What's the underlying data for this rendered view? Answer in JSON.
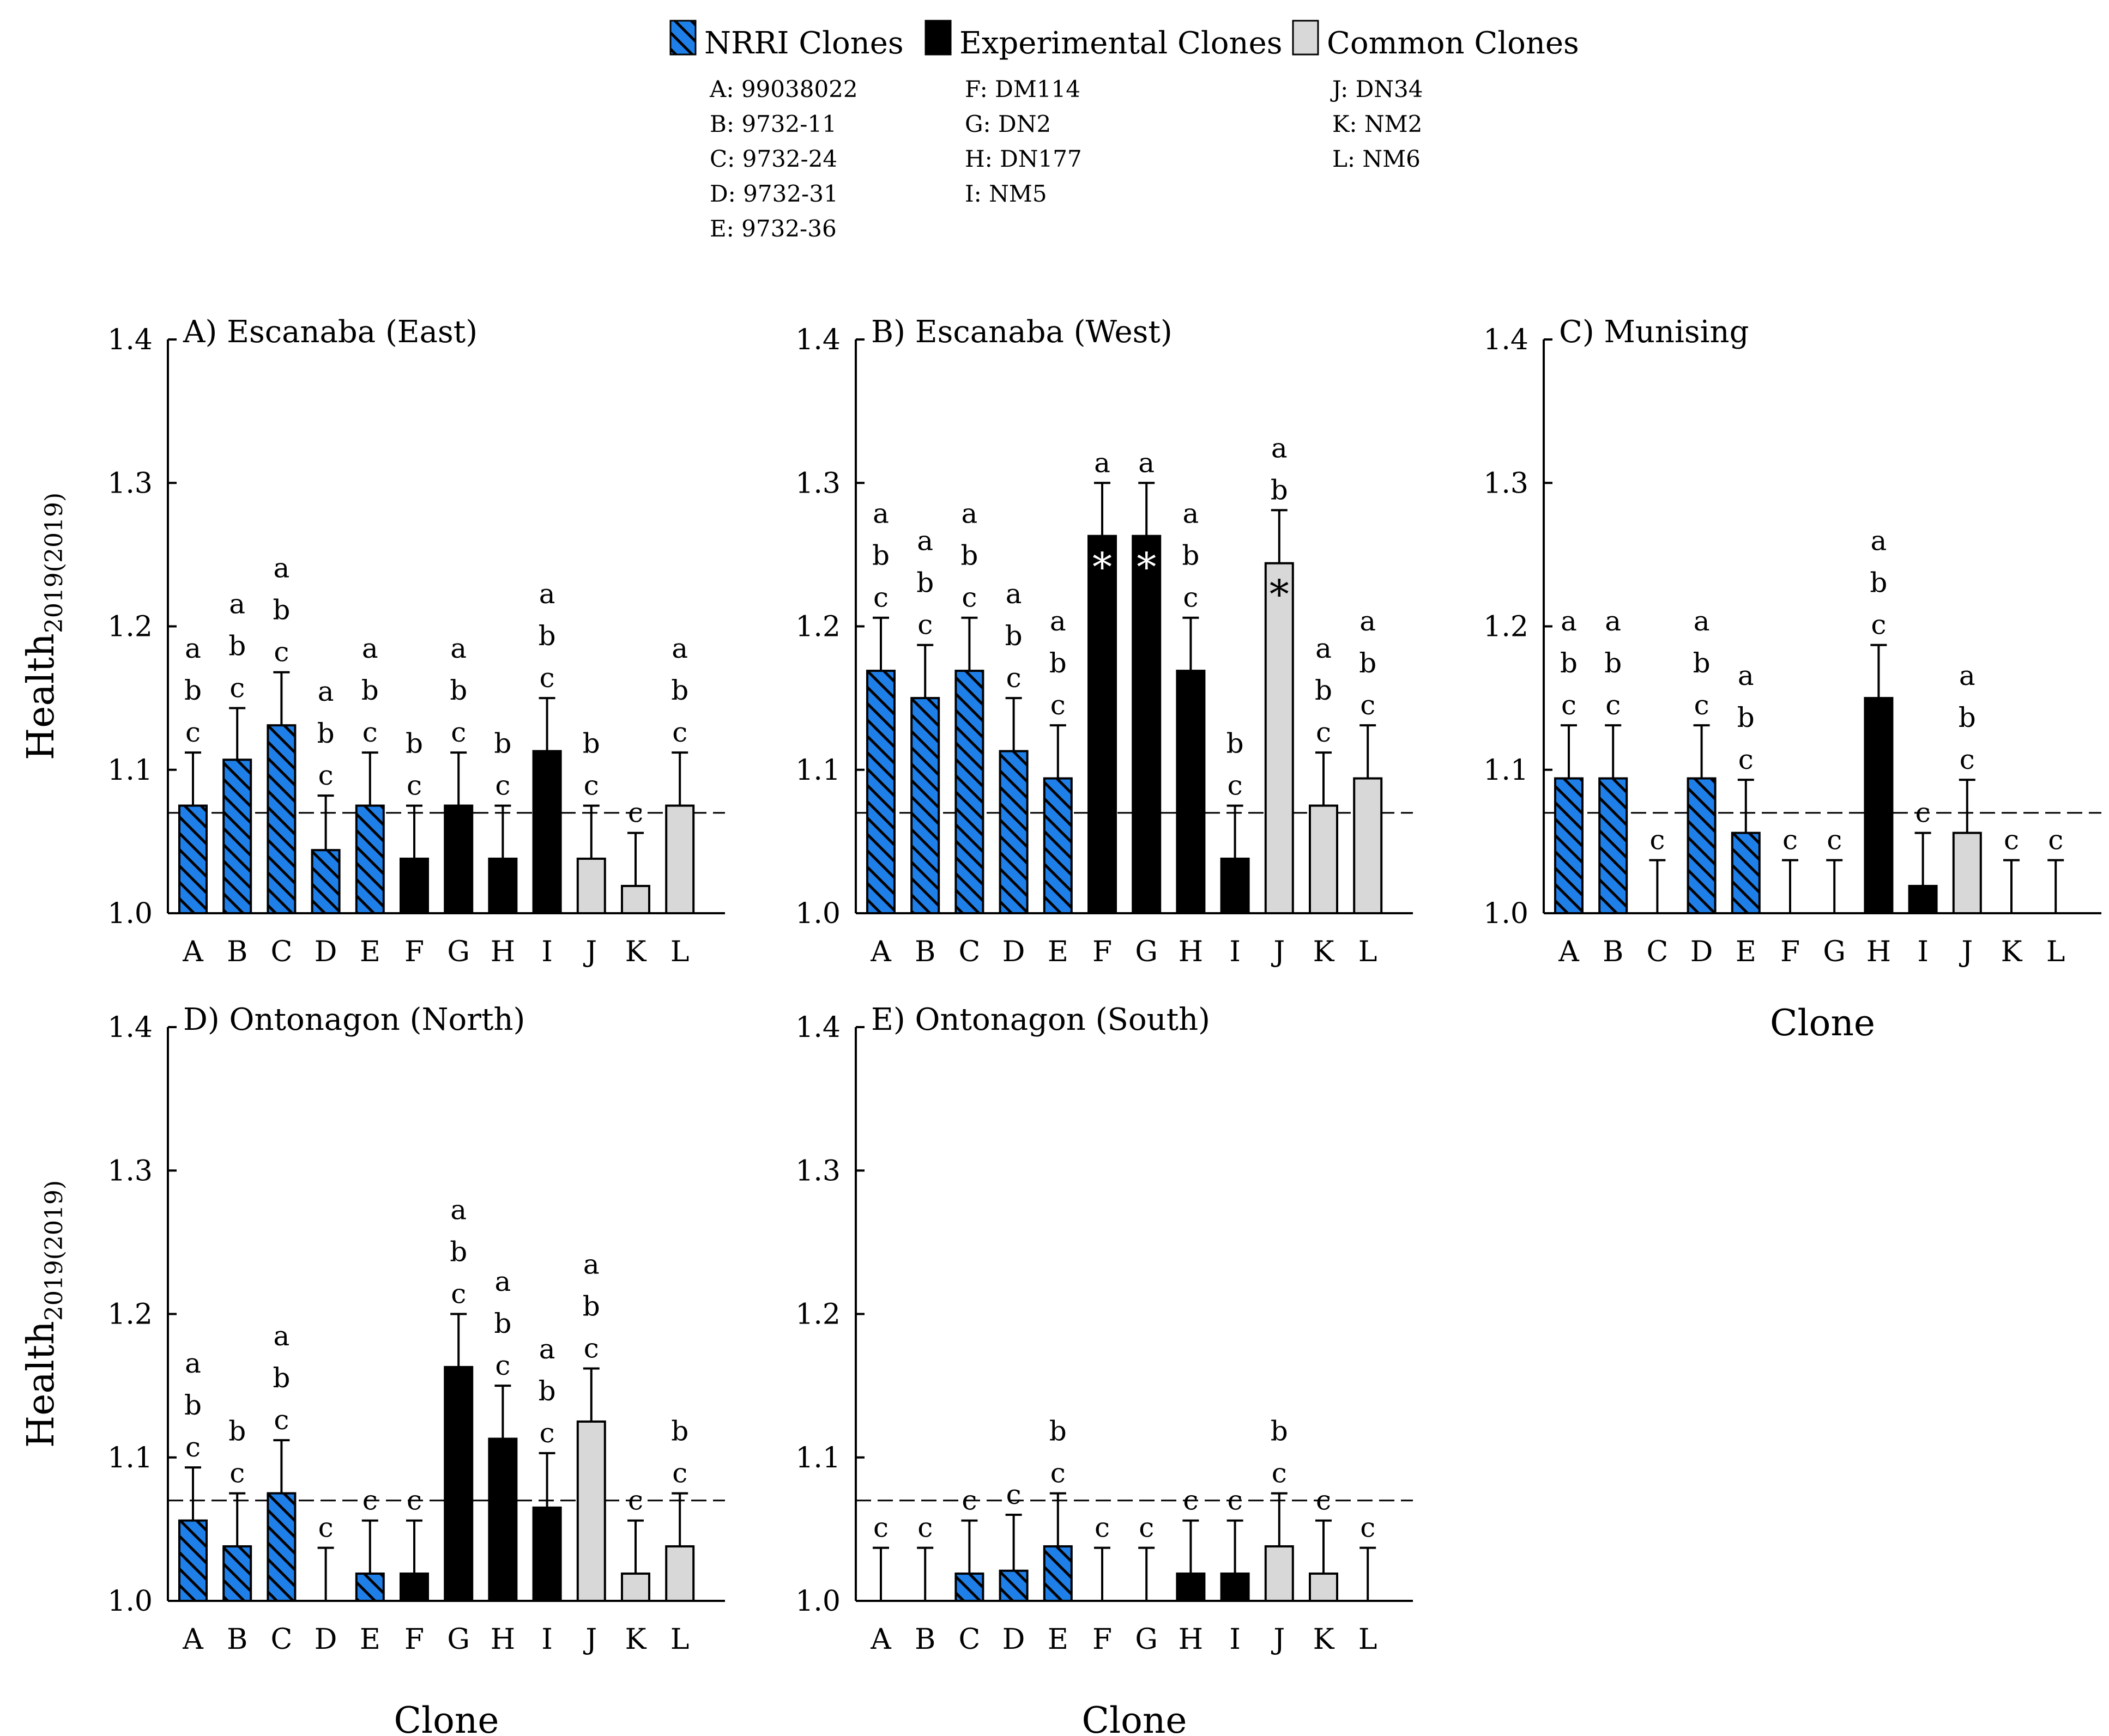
{
  "legend": {
    "groups": [
      {
        "label": "NRRI Clones",
        "fill": "#1f7fe8",
        "hatch": true,
        "members": [
          "A: 99038022",
          "B: 9732-11",
          "C: 9732-24",
          "D: 9732-31",
          "E: 9732-36"
        ]
      },
      {
        "label": "Experimental Clones",
        "fill": "#000000",
        "hatch": false,
        "members": [
          "F: DM114",
          "G: DN2",
          "H: DN177",
          "I: NM5"
        ]
      },
      {
        "label": "Common Clones",
        "fill": "#d8d8d8",
        "hatch": false,
        "members": [
          "J: DN34",
          "K: NM2",
          "L: NM6"
        ]
      }
    ]
  },
  "colors": {
    "nrri": "#1f7fe8",
    "experimental": "#000000",
    "common": "#d8d8d8"
  },
  "chart_data": [
    {
      "type": "bar",
      "title": "A) Escanaba (East)",
      "xlabel": "",
      "ylabel_main": "Health",
      "ylabel_sub": "2019(2019)",
      "ylim": [
        1.0,
        1.4
      ],
      "yticks": [
        "1.0",
        "1.1",
        "1.2",
        "1.3",
        "1.4"
      ],
      "reference_line": 1.07,
      "categories": [
        "A",
        "B",
        "C",
        "D",
        "E",
        "F",
        "G",
        "H",
        "I",
        "J",
        "K",
        "L"
      ],
      "values": [
        1.075,
        1.107,
        1.131,
        1.044,
        1.075,
        1.038,
        1.075,
        1.038,
        1.113,
        1.038,
        1.019,
        1.075
      ],
      "errors": [
        0.037,
        0.036,
        0.037,
        0.038,
        0.037,
        0.037,
        0.037,
        0.037,
        0.037,
        0.037,
        0.037,
        0.037
      ],
      "letters": [
        "abc",
        "abc",
        "abc",
        "abc",
        "abc",
        "bc",
        "abc",
        "bc",
        "abc",
        "bc",
        "c",
        "abc"
      ],
      "stars": [
        "",
        "",
        "",
        "",
        "",
        "",
        "",
        "",
        "",
        "",
        "",
        ""
      ]
    },
    {
      "type": "bar",
      "title": "B) Escanaba (West)",
      "xlabel": "",
      "ylabel_main": "",
      "ylabel_sub": "",
      "ylim": [
        1.0,
        1.4
      ],
      "yticks": [
        "1.0",
        "1.1",
        "1.2",
        "1.3",
        "1.4"
      ],
      "reference_line": 1.07,
      "categories": [
        "A",
        "B",
        "C",
        "D",
        "E",
        "F",
        "G",
        "H",
        "I",
        "J",
        "K",
        "L"
      ],
      "values": [
        1.169,
        1.15,
        1.169,
        1.113,
        1.094,
        1.263,
        1.263,
        1.169,
        1.038,
        1.244,
        1.075,
        1.094
      ],
      "errors": [
        0.037,
        0.037,
        0.037,
        0.037,
        0.037,
        0.037,
        0.037,
        0.037,
        0.037,
        0.037,
        0.037,
        0.037
      ],
      "letters": [
        "abc",
        "abc",
        "abc",
        "abc",
        "abc",
        "a",
        "a",
        "abc",
        "bc",
        "ab",
        "abc",
        "abc"
      ],
      "stars": [
        "",
        "",
        "",
        "",
        "",
        "*",
        "*",
        "",
        "",
        "*",
        "",
        ""
      ]
    },
    {
      "type": "bar",
      "title": "C) Munising",
      "xlabel": "Clone",
      "ylabel_main": "",
      "ylabel_sub": "",
      "ylim": [
        1.0,
        1.4
      ],
      "yticks": [
        "1.0",
        "1.1",
        "1.2",
        "1.3",
        "1.4"
      ],
      "reference_line": 1.07,
      "categories": [
        "A",
        "B",
        "C",
        "D",
        "E",
        "F",
        "G",
        "H",
        "I",
        "J",
        "K",
        "L"
      ],
      "values": [
        1.094,
        1.094,
        1.0,
        1.094,
        1.056,
        1.0,
        1.0,
        1.15,
        1.019,
        1.056,
        1.0,
        1.0
      ],
      "errors": [
        0.037,
        0.037,
        0.037,
        0.037,
        0.037,
        0.037,
        0.037,
        0.037,
        0.037,
        0.037,
        0.037,
        0.037
      ],
      "letters": [
        "abc",
        "abc",
        "c",
        "abc",
        "abc",
        "c",
        "c",
        "abc",
        "c",
        "abc",
        "c",
        "c"
      ],
      "stars": [
        "",
        "",
        "",
        "",
        "",
        "",
        "",
        "",
        "",
        "",
        "",
        ""
      ]
    },
    {
      "type": "bar",
      "title": "D) Ontonagon (North)",
      "xlabel": "Clone",
      "ylabel_main": "Health",
      "ylabel_sub": "2019(2019)",
      "ylim": [
        1.0,
        1.4
      ],
      "yticks": [
        "1.0",
        "1.1",
        "1.2",
        "1.3",
        "1.4"
      ],
      "reference_line": 1.07,
      "categories": [
        "A",
        "B",
        "C",
        "D",
        "E",
        "F",
        "G",
        "H",
        "I",
        "J",
        "K",
        "L"
      ],
      "values": [
        1.056,
        1.038,
        1.075,
        1.0,
        1.019,
        1.019,
        1.163,
        1.113,
        1.065,
        1.125,
        1.019,
        1.038
      ],
      "errors": [
        0.037,
        0.037,
        0.037,
        0.037,
        0.037,
        0.037,
        0.037,
        0.037,
        0.038,
        0.037,
        0.037,
        0.037
      ],
      "letters": [
        "abc",
        "bc",
        "abc",
        "c",
        "c",
        "c",
        "abc",
        "abc",
        "abc",
        "abc",
        "c",
        "bc"
      ],
      "stars": [
        "",
        "",
        "",
        "",
        "",
        "",
        "",
        "",
        "",
        "",
        "",
        ""
      ]
    },
    {
      "type": "bar",
      "title": "E) Ontonagon (South)",
      "xlabel": "Clone",
      "ylabel_main": "",
      "ylabel_sub": "",
      "ylim": [
        1.0,
        1.4
      ],
      "yticks": [
        "1.0",
        "1.1",
        "1.2",
        "1.3",
        "1.4"
      ],
      "reference_line": 1.07,
      "categories": [
        "A",
        "B",
        "C",
        "D",
        "E",
        "F",
        "G",
        "H",
        "I",
        "J",
        "K",
        "L"
      ],
      "values": [
        1.0,
        1.0,
        1.019,
        1.021,
        1.038,
        1.0,
        1.0,
        1.019,
        1.019,
        1.038,
        1.019,
        1.0
      ],
      "errors": [
        0.037,
        0.037,
        0.037,
        0.039,
        0.037,
        0.037,
        0.037,
        0.037,
        0.037,
        0.037,
        0.037,
        0.037
      ],
      "letters": [
        "c",
        "c",
        "c",
        "c",
        "bc",
        "c",
        "c",
        "c",
        "c",
        "bc",
        "c",
        "c"
      ],
      "stars": [
        "",
        "",
        "",
        "",
        "",
        "",
        "",
        "",
        "",
        "",
        "",
        ""
      ]
    }
  ]
}
